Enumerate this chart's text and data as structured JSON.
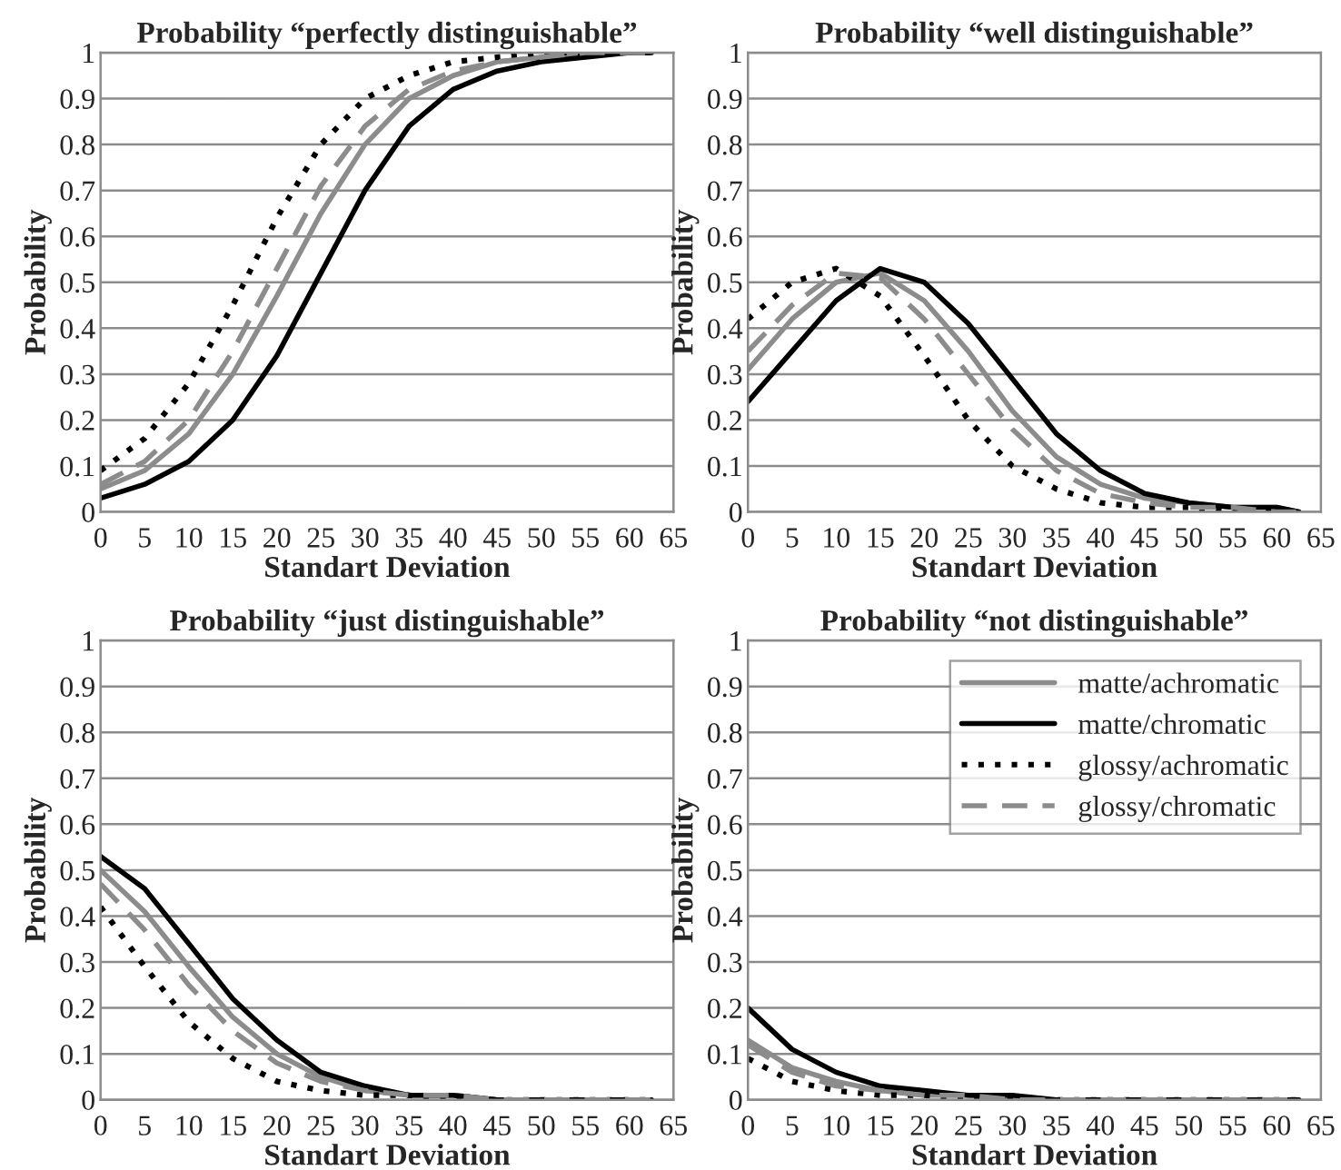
{
  "chart_data": [
    {
      "type": "line",
      "title": "Probability “perfectly distinguishable”",
      "xlabel": "Standart Deviation",
      "ylabel": "Probability",
      "x": [
        0,
        5,
        10,
        15,
        20,
        25,
        30,
        35,
        40,
        45,
        50,
        55,
        60,
        62.5
      ],
      "series": [
        {
          "color": "#8c8c8c",
          "line_style": "solid",
          "values": [
            0.05,
            0.09,
            0.17,
            0.3,
            0.47,
            0.65,
            0.8,
            0.9,
            0.95,
            0.98,
            0.99,
            1,
            1,
            1
          ]
        },
        {
          "color": "#000000",
          "line_style": "solid",
          "values": [
            0.03,
            0.06,
            0.11,
            0.2,
            0.34,
            0.52,
            0.7,
            0.84,
            0.92,
            0.96,
            0.98,
            0.99,
            1,
            1
          ]
        },
        {
          "color": "#000000",
          "line_style": "dotted",
          "values": [
            0.09,
            0.16,
            0.28,
            0.45,
            0.64,
            0.8,
            0.9,
            0.95,
            0.98,
            0.99,
            1,
            1,
            1,
            1
          ]
        },
        {
          "color": "#8c8c8c",
          "line_style": "dashed",
          "values": [
            0.06,
            0.11,
            0.2,
            0.35,
            0.53,
            0.71,
            0.84,
            0.92,
            0.96,
            0.98,
            0.99,
            1,
            1,
            1
          ]
        }
      ],
      "xlim": [
        0,
        65
      ],
      "xticks": [
        0,
        5,
        10,
        15,
        20,
        25,
        30,
        35,
        40,
        45,
        50,
        55,
        60,
        65
      ],
      "ylim": [
        0,
        1
      ],
      "yticks": [
        0,
        0.1,
        0.2,
        0.3,
        0.4,
        0.5,
        0.6,
        0.7,
        0.8,
        0.9,
        1
      ],
      "grid": "y"
    },
    {
      "type": "line",
      "title": "Probability “well distinguishable”",
      "xlabel": "Standart Deviation",
      "ylabel": "Probability",
      "x": [
        0,
        5,
        10,
        15,
        20,
        25,
        30,
        35,
        40,
        45,
        50,
        55,
        60,
        62.5
      ],
      "series": [
        {
          "color": "#8c8c8c",
          "line_style": "solid",
          "values": [
            0.31,
            0.42,
            0.5,
            0.52,
            0.46,
            0.35,
            0.22,
            0.12,
            0.06,
            0.03,
            0.02,
            0.01,
            0.01,
            0
          ]
        },
        {
          "color": "#000000",
          "line_style": "solid",
          "values": [
            0.24,
            0.35,
            0.46,
            0.53,
            0.5,
            0.41,
            0.29,
            0.17,
            0.09,
            0.04,
            0.02,
            0.01,
            0.01,
            0
          ]
        },
        {
          "color": "#000000",
          "line_style": "dotted",
          "values": [
            0.42,
            0.5,
            0.53,
            0.47,
            0.34,
            0.2,
            0.1,
            0.05,
            0.02,
            0.01,
            0.01,
            0,
            0,
            0
          ]
        },
        {
          "color": "#8c8c8c",
          "line_style": "dashed",
          "values": [
            0.35,
            0.45,
            0.52,
            0.51,
            0.42,
            0.3,
            0.18,
            0.09,
            0.04,
            0.02,
            0.01,
            0.01,
            0,
            0
          ]
        }
      ],
      "xlim": [
        0,
        65
      ],
      "xticks": [
        0,
        5,
        10,
        15,
        20,
        25,
        30,
        35,
        40,
        45,
        50,
        55,
        60,
        65
      ],
      "ylim": [
        0,
        1
      ],
      "yticks": [
        0,
        0.1,
        0.2,
        0.3,
        0.4,
        0.5,
        0.6,
        0.7,
        0.8,
        0.9,
        1
      ],
      "grid": "y"
    },
    {
      "type": "line",
      "title": "Probability “just distinguishable”",
      "xlabel": "Standart Deviation",
      "ylabel": "Probability",
      "x": [
        0,
        5,
        10,
        15,
        20,
        25,
        30,
        35,
        40,
        45,
        50,
        55,
        60,
        62.5
      ],
      "series": [
        {
          "color": "#8c8c8c",
          "line_style": "solid",
          "values": [
            0.5,
            0.41,
            0.29,
            0.18,
            0.1,
            0.05,
            0.02,
            0.01,
            0.01,
            0,
            0,
            0,
            0,
            0
          ]
        },
        {
          "color": "#000000",
          "line_style": "solid",
          "values": [
            0.53,
            0.46,
            0.34,
            0.22,
            0.13,
            0.06,
            0.03,
            0.01,
            0.01,
            0,
            0,
            0,
            0,
            0
          ]
        },
        {
          "color": "#000000",
          "line_style": "dotted",
          "values": [
            0.42,
            0.29,
            0.17,
            0.09,
            0.04,
            0.02,
            0.01,
            0.01,
            0,
            0,
            0,
            0,
            0,
            0
          ]
        },
        {
          "color": "#8c8c8c",
          "line_style": "dashed",
          "values": [
            0.47,
            0.37,
            0.25,
            0.15,
            0.08,
            0.04,
            0.02,
            0.01,
            0.01,
            0,
            0,
            0,
            0,
            0
          ]
        }
      ],
      "xlim": [
        0,
        65
      ],
      "xticks": [
        0,
        5,
        10,
        15,
        20,
        25,
        30,
        35,
        40,
        45,
        50,
        55,
        60,
        65
      ],
      "ylim": [
        0,
        1
      ],
      "yticks": [
        0,
        0.1,
        0.2,
        0.3,
        0.4,
        0.5,
        0.6,
        0.7,
        0.8,
        0.9,
        1
      ],
      "grid": "y"
    },
    {
      "type": "line",
      "title": "Probability “not distinguishable”",
      "xlabel": "Standart Deviation",
      "ylabel": "Probability",
      "x": [
        0,
        5,
        10,
        15,
        20,
        25,
        30,
        35,
        40,
        45,
        50,
        55,
        60,
        62.5
      ],
      "series": [
        {
          "name": "matte/achromatic",
          "color": "#8c8c8c",
          "line_style": "solid",
          "values": [
            0.13,
            0.07,
            0.04,
            0.02,
            0.01,
            0.01,
            0,
            0,
            0,
            0,
            0,
            0,
            0,
            0
          ]
        },
        {
          "name": "matte/chromatic",
          "color": "#000000",
          "line_style": "solid",
          "values": [
            0.2,
            0.11,
            0.06,
            0.03,
            0.02,
            0.01,
            0.01,
            0,
            0,
            0,
            0,
            0,
            0,
            0
          ]
        },
        {
          "name": "glossy/achromatic",
          "color": "#000000",
          "line_style": "dotted",
          "values": [
            0.09,
            0.04,
            0.02,
            0.01,
            0.01,
            0,
            0,
            0,
            0,
            0,
            0,
            0,
            0,
            0
          ]
        },
        {
          "name": "glossy/chromatic",
          "color": "#8c8c8c",
          "line_style": "dashed",
          "values": [
            0.12,
            0.06,
            0.03,
            0.02,
            0.01,
            0.01,
            0,
            0,
            0,
            0,
            0,
            0,
            0,
            0
          ]
        }
      ],
      "xlim": [
        0,
        65
      ],
      "xticks": [
        0,
        5,
        10,
        15,
        20,
        25,
        30,
        35,
        40,
        45,
        50,
        55,
        60,
        65
      ],
      "ylim": [
        0,
        1
      ],
      "yticks": [
        0,
        0.1,
        0.2,
        0.3,
        0.4,
        0.5,
        0.6,
        0.7,
        0.8,
        0.9,
        1
      ],
      "grid": "y",
      "legend": "top right"
    }
  ]
}
